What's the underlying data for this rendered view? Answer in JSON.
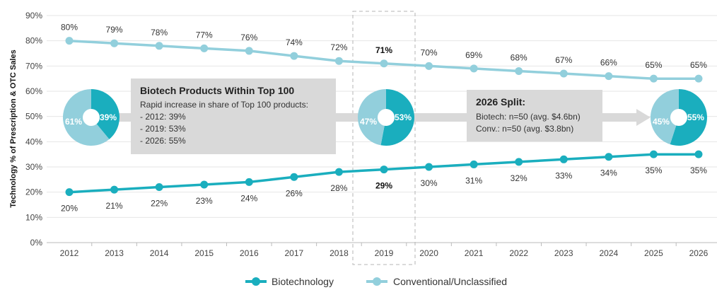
{
  "chart_data": {
    "type": "line",
    "ylabel": "Technology % of Prescription & OTC Sales",
    "xlabel": "",
    "ylim": [
      0,
      90
    ],
    "yticks": [
      0,
      10,
      20,
      30,
      40,
      50,
      60,
      70,
      80,
      90
    ],
    "ytick_labels": [
      "0%",
      "10%",
      "20%",
      "30%",
      "40%",
      "50%",
      "60%",
      "70%",
      "80%",
      "90%"
    ],
    "categories": [
      "2012",
      "2013",
      "2014",
      "2015",
      "2016",
      "2017",
      "2018",
      "2019",
      "2020",
      "2021",
      "2022",
      "2023",
      "2024",
      "2025",
      "2026"
    ],
    "series": [
      {
        "name": "Biotechnology",
        "color": "#1aaebe",
        "values": [
          20,
          21,
          22,
          23,
          24,
          26,
          28,
          29,
          30,
          31,
          32,
          33,
          34,
          35,
          35
        ],
        "labels": [
          "20%",
          "21%",
          "22%",
          "23%",
          "24%",
          "26%",
          "28%",
          "29%",
          "30%",
          "31%",
          "32%",
          "33%",
          "34%",
          "35%",
          "35%"
        ]
      },
      {
        "name": "Conventional/Unclassified",
        "color": "#92cfdc",
        "values": [
          80,
          79,
          78,
          77,
          76,
          74,
          72,
          71,
          70,
          69,
          68,
          67,
          66,
          65,
          65
        ],
        "labels": [
          "80%",
          "79%",
          "78%",
          "77%",
          "76%",
          "74%",
          "72%",
          "71%",
          "70%",
          "69%",
          "68%",
          "67%",
          "66%",
          "65%",
          "65%"
        ]
      }
    ],
    "highlight_category": "2019",
    "pies": [
      {
        "year": "2012",
        "biotech": 39,
        "conventional": 61,
        "biotech_label": "39%",
        "conventional_label": "61%"
      },
      {
        "year": "2019",
        "biotech": 53,
        "conventional": 47,
        "biotech_label": "53%",
        "conventional_label": "47%"
      },
      {
        "year": "2026",
        "biotech": 55,
        "conventional": 45,
        "biotech_label": "55%",
        "conventional_label": "45%"
      }
    ],
    "annotations": {
      "top100": {
        "title": "Biotech Products Within Top 100",
        "lines": [
          "Rapid increase in share of Top 100 products:",
          "- 2012: 39%",
          "- 2019: 53%",
          "- 2026: 55%"
        ]
      },
      "split2026": {
        "title": "2026 Split:",
        "lines": [
          "Biotech: n=50 (avg. $4.6bn)",
          "Conv.: n=50 (avg. $3.8bn)"
        ]
      }
    },
    "legend": {
      "position": "bottom-center",
      "items": [
        "Biotechnology",
        "Conventional/Unclassified"
      ]
    }
  }
}
